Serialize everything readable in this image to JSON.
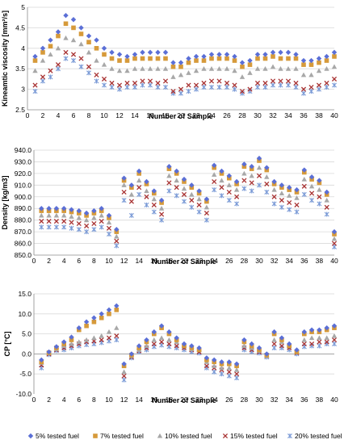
{
  "chart_data": [
    {
      "type": "scatter",
      "xlabel": "Number of Sample",
      "ylabel": "Kineamtic viscosity [mm²/s]",
      "xlim": [
        0,
        40
      ],
      "ylim": [
        2.5,
        5.0
      ],
      "x_ticks": [
        0,
        2,
        4,
        6,
        8,
        10,
        12,
        14,
        16,
        18,
        20,
        22,
        24,
        26,
        28,
        30,
        32,
        34,
        36,
        38,
        40
      ],
      "y_ticks": [
        2.5,
        3.0,
        3.5,
        4.0,
        4.5,
        5.0
      ],
      "y_tick_labels": [
        "2.5",
        "3",
        "3.5",
        "4",
        "4.5",
        "5"
      ],
      "grid": "horizontal",
      "x": [
        1,
        2,
        3,
        4,
        5,
        6,
        7,
        8,
        9,
        10,
        11,
        12,
        13,
        14,
        15,
        16,
        17,
        18,
        19,
        20,
        21,
        22,
        23,
        24,
        25,
        26,
        27,
        28,
        29,
        30,
        31,
        32,
        33,
        34,
        35,
        36,
        37,
        38,
        39,
        40
      ],
      "series": [
        {
          "name": "5% tested fuel",
          "values": [
            3.8,
            4.0,
            4.2,
            4.4,
            4.8,
            4.7,
            4.5,
            4.3,
            4.2,
            4.0,
            3.9,
            3.85,
            3.8,
            3.85,
            3.9,
            3.9,
            3.9,
            3.9,
            3.65,
            3.65,
            3.75,
            3.8,
            3.8,
            3.85,
            3.85,
            3.85,
            3.8,
            3.65,
            3.7,
            3.85,
            3.85,
            3.9,
            3.9,
            3.9,
            3.85,
            3.7,
            3.7,
            3.75,
            3.8,
            3.9
          ]
        },
        {
          "name": "7% tested fuel",
          "values": [
            3.7,
            3.9,
            4.05,
            4.3,
            4.6,
            4.5,
            4.35,
            4.15,
            4.0,
            3.85,
            3.75,
            3.7,
            3.7,
            3.75,
            3.75,
            3.75,
            3.75,
            3.75,
            3.55,
            3.55,
            3.65,
            3.7,
            3.7,
            3.75,
            3.75,
            3.75,
            3.7,
            3.55,
            3.6,
            3.75,
            3.75,
            3.8,
            3.75,
            3.75,
            3.75,
            3.6,
            3.6,
            3.65,
            3.7,
            3.8
          ]
        },
        {
          "name": "10% tested fuel",
          "values": [
            3.45,
            3.7,
            3.85,
            4.0,
            4.25,
            4.2,
            4.1,
            3.9,
            3.7,
            3.6,
            3.5,
            3.45,
            3.45,
            3.5,
            3.5,
            3.5,
            3.5,
            3.5,
            3.3,
            3.35,
            3.4,
            3.45,
            3.5,
            3.5,
            3.5,
            3.5,
            3.45,
            3.3,
            3.4,
            3.5,
            3.5,
            3.55,
            3.5,
            3.5,
            3.5,
            3.35,
            3.35,
            3.45,
            3.5,
            3.55
          ]
        },
        {
          "name": "15% tested fuel",
          "values": [
            3.1,
            3.3,
            3.45,
            3.6,
            3.9,
            3.85,
            3.75,
            3.55,
            3.35,
            3.25,
            3.15,
            3.1,
            3.15,
            3.15,
            3.2,
            3.2,
            3.15,
            3.2,
            2.95,
            3.0,
            3.1,
            3.1,
            3.15,
            3.2,
            3.2,
            3.15,
            3.1,
            2.95,
            3.0,
            3.15,
            3.15,
            3.2,
            3.2,
            3.2,
            3.15,
            3.0,
            3.05,
            3.1,
            3.15,
            3.25
          ]
        },
        {
          "name": "20% tested fuel",
          "values": [
            2.95,
            3.2,
            3.3,
            3.5,
            3.75,
            3.7,
            3.55,
            3.4,
            3.2,
            3.1,
            3.05,
            3.0,
            3.05,
            3.05,
            3.1,
            3.1,
            3.05,
            3.05,
            2.9,
            2.9,
            2.95,
            3.0,
            3.05,
            3.05,
            3.05,
            3.05,
            3.0,
            2.9,
            2.95,
            3.05,
            3.05,
            3.1,
            3.1,
            3.1,
            3.05,
            2.9,
            2.95,
            3.0,
            3.05,
            3.1
          ]
        }
      ]
    },
    {
      "type": "scatter",
      "xlabel": "Number of Sample",
      "ylabel": "Density [kg/m3]",
      "xlim": [
        0,
        40
      ],
      "ylim": [
        850,
        940
      ],
      "x_ticks": [
        0,
        2,
        4,
        6,
        8,
        10,
        12,
        14,
        16,
        18,
        20,
        22,
        24,
        26,
        28,
        30,
        32,
        34,
        36,
        38,
        40
      ],
      "y_ticks": [
        850,
        860,
        870,
        880,
        890,
        900,
        910,
        920,
        930,
        940
      ],
      "y_tick_labels": [
        "850.0",
        "860.0",
        "870.0",
        "880.0",
        "890.0",
        "900.0",
        "910.0",
        "920.0",
        "930.0",
        "940.0"
      ],
      "grid": "horizontal",
      "x": [
        1,
        2,
        3,
        4,
        5,
        6,
        7,
        8,
        9,
        10,
        11,
        12,
        13,
        14,
        15,
        16,
        17,
        18,
        19,
        20,
        21,
        22,
        23,
        24,
        25,
        26,
        27,
        28,
        29,
        30,
        31,
        32,
        33,
        34,
        35,
        36,
        37,
        38,
        39,
        40
      ],
      "series": [
        {
          "name": "5% tested fuel",
          "values": [
            890,
            890,
            890,
            890,
            889,
            888,
            886,
            888,
            890,
            884,
            872,
            916,
            910,
            922,
            913,
            905,
            897,
            926,
            922,
            915,
            910,
            905,
            898,
            927,
            922,
            918,
            913,
            928,
            926,
            933,
            925,
            913,
            910,
            908,
            906,
            923,
            917,
            914,
            904,
            870
          ]
        },
        {
          "name": "7% tested fuel",
          "values": [
            888,
            888,
            888,
            888,
            887,
            886,
            884,
            886,
            888,
            882,
            870,
            914,
            908,
            920,
            911,
            903,
            895,
            924,
            920,
            913,
            908,
            903,
            896,
            925,
            920,
            916,
            911,
            926,
            924,
            931,
            923,
            911,
            908,
            906,
            904,
            921,
            915,
            912,
            902,
            868
          ]
        },
        {
          "name": "10% tested fuel",
          "values": [
            884,
            884,
            884,
            884,
            883,
            882,
            880,
            882,
            884,
            878,
            866,
            910,
            902,
            914,
            905,
            898,
            890,
            918,
            914,
            907,
            902,
            898,
            891,
            919,
            914,
            910,
            906,
            920,
            918,
            925,
            917,
            906,
            903,
            901,
            899,
            915,
            909,
            906,
            897,
            864
          ]
        },
        {
          "name": "15% tested fuel",
          "values": [
            879,
            879,
            879,
            879,
            878,
            877,
            875,
            877,
            879,
            873,
            862,
            904,
            896,
            908,
            900,
            893,
            885,
            912,
            908,
            902,
            897,
            893,
            886,
            913,
            908,
            904,
            900,
            914,
            912,
            918,
            911,
            900,
            897,
            895,
            893,
            909,
            903,
            900,
            891,
            860
          ]
        },
        {
          "name": "20% tested fuel",
          "values": [
            874,
            874,
            874,
            874,
            873,
            872,
            870,
            872,
            874,
            868,
            858,
            897,
            884,
            902,
            893,
            887,
            880,
            905,
            901,
            896,
            891,
            887,
            880,
            906,
            901,
            897,
            894,
            907,
            905,
            910,
            904,
            894,
            891,
            889,
            887,
            902,
            897,
            894,
            885,
            857
          ]
        }
      ]
    },
    {
      "type": "scatter",
      "xlabel": "Number of Sample",
      "ylabel": "CP [°C]",
      "xlim": [
        0,
        40
      ],
      "ylim": [
        -10,
        15
      ],
      "x_ticks": [
        0,
        2,
        4,
        6,
        8,
        10,
        12,
        14,
        16,
        18,
        20,
        22,
        24,
        26,
        28,
        30,
        32,
        34,
        36,
        38,
        40
      ],
      "y_ticks": [
        -10,
        -5,
        0,
        5,
        10,
        15
      ],
      "y_tick_labels": [
        "-10.0",
        "-5.0",
        "0.0",
        "5.0",
        "10.0",
        "15.0"
      ],
      "grid": "horizontal",
      "x": [
        1,
        2,
        3,
        4,
        5,
        6,
        7,
        8,
        9,
        10,
        11,
        12,
        13,
        14,
        15,
        16,
        17,
        18,
        19,
        20,
        21,
        22,
        23,
        24,
        25,
        26,
        27,
        28,
        29,
        30,
        31,
        32,
        33,
        34,
        35,
        36,
        37,
        38,
        39,
        40
      ],
      "series": [
        {
          "name": "5% tested fuel",
          "values": [
            -1.5,
            0.5,
            1.8,
            3.0,
            4.2,
            6.5,
            8.0,
            9.0,
            10.0,
            11.0,
            12.0,
            -2.5,
            0.0,
            2.0,
            3.5,
            5.5,
            7.0,
            5.5,
            4.0,
            2.5,
            2.0,
            1.5,
            -1.0,
            -1.5,
            -2.0,
            -2.0,
            -2.5,
            3.5,
            2.5,
            1.5,
            0.0,
            5.5,
            4.0,
            2.5,
            1.0,
            5.5,
            6.0,
            6.0,
            6.5,
            7.0
          ]
        },
        {
          "name": "7% tested fuel",
          "values": [
            -2.0,
            0.3,
            1.5,
            2.5,
            3.5,
            6.0,
            7.0,
            8.0,
            9.0,
            10.0,
            11.0,
            -3.0,
            -0.3,
            1.5,
            3.0,
            5.0,
            6.5,
            5.0,
            3.5,
            2.0,
            1.5,
            1.0,
            -1.5,
            -2.0,
            -2.5,
            -2.5,
            -3.0,
            3.0,
            2.0,
            1.0,
            -0.3,
            5.0,
            3.5,
            2.0,
            0.5,
            5.0,
            5.5,
            5.5,
            6.0,
            6.5
          ]
        },
        {
          "name": "10% tested fuel",
          "values": [
            -2.2,
            0.2,
            1.2,
            2.0,
            2.5,
            3.0,
            3.5,
            4.0,
            4.5,
            5.5,
            6.5,
            -4.5,
            -0.5,
            1.0,
            2.0,
            3.5,
            4.0,
            3.5,
            3.0,
            2.0,
            1.2,
            1.0,
            -2.0,
            -3.0,
            -3.5,
            -3.5,
            -4.0,
            2.0,
            1.5,
            0.8,
            -0.5,
            3.5,
            3.0,
            2.0,
            0.5,
            3.5,
            4.0,
            4.0,
            4.0,
            4.5
          ]
        },
        {
          "name": "15% tested fuel",
          "values": [
            -2.8,
            0.0,
            1.0,
            1.5,
            2.0,
            2.5,
            3.0,
            3.2,
            3.5,
            4.0,
            4.5,
            -5.5,
            -0.8,
            0.8,
            1.5,
            2.5,
            3.0,
            2.5,
            2.0,
            1.5,
            1.0,
            0.5,
            -3.0,
            -3.5,
            -4.0,
            -4.5,
            -5.0,
            1.5,
            1.0,
            0.5,
            -0.5,
            2.5,
            2.0,
            1.5,
            0.3,
            2.5,
            2.5,
            3.0,
            3.0,
            3.5
          ]
        },
        {
          "name": "20% tested fuel",
          "values": [
            -3.5,
            -0.2,
            0.8,
            1.0,
            1.5,
            2.0,
            2.3,
            2.5,
            2.8,
            3.2,
            3.5,
            -6.5,
            -1.0,
            0.5,
            1.0,
            1.8,
            2.2,
            1.8,
            1.5,
            1.0,
            0.5,
            0.2,
            -3.5,
            -4.5,
            -5.0,
            -5.5,
            -6.0,
            1.0,
            0.5,
            0.2,
            -0.8,
            1.5,
            1.5,
            1.0,
            0.0,
            1.8,
            2.0,
            2.0,
            2.5,
            2.5
          ]
        }
      ]
    }
  ],
  "legend": {
    "placement": "bottom",
    "items": [
      {
        "label": "5% tested fuel",
        "marker": "diamond",
        "color": "#5b6fd6"
      },
      {
        "label": "7% tested fuel",
        "marker": "square",
        "color": "#d69a3a"
      },
      {
        "label": "10% tested fuel",
        "marker": "triangle",
        "color": "#a8a8a8"
      },
      {
        "label": "15% tested fuel",
        "marker": "x",
        "color": "#a83232"
      },
      {
        "label": "20% tested fuel",
        "marker": "star",
        "color": "#7a9ad6"
      }
    ]
  }
}
